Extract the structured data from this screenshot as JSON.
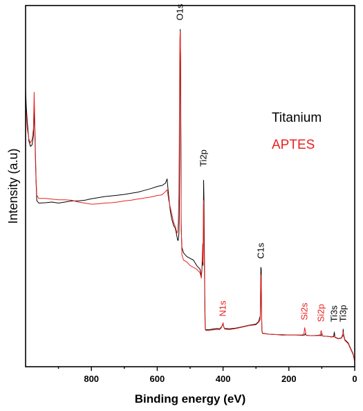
{
  "chart_data": {
    "type": "line",
    "title": "",
    "xlabel": "Binding energy (eV)",
    "ylabel": "Intensity (a.u)",
    "xlim": [
      1000,
      0
    ],
    "ylim": [
      0,
      100
    ],
    "x_reversed": true,
    "xticks": [
      800,
      600,
      400,
      200,
      0
    ],
    "grid": false,
    "legend_position": "top-right",
    "legend": [
      {
        "name": "Titanium",
        "color": "#000000"
      },
      {
        "name": "APTES",
        "color": "#e8211f"
      }
    ],
    "series": [
      {
        "name": "Titanium",
        "color": "#000000",
        "points": [
          [
            1000,
            77.0
          ],
          [
            998,
            72.0
          ],
          [
            995,
            68.0
          ],
          [
            990,
            62.5
          ],
          [
            985,
            61.0
          ],
          [
            980,
            61.5
          ],
          [
            976,
            64.0
          ],
          [
            974,
            72.0
          ],
          [
            972,
            66.0
          ],
          [
            970,
            57.0
          ],
          [
            968,
            51.0
          ],
          [
            966,
            46.0
          ],
          [
            960,
            45.3
          ],
          [
            940,
            45.4
          ],
          [
            920,
            45.6
          ],
          [
            900,
            45.3
          ],
          [
            880,
            45.6
          ],
          [
            860,
            45.9
          ],
          [
            840,
            45.9
          ],
          [
            820,
            46.1
          ],
          [
            800,
            46.5
          ],
          [
            780,
            46.8
          ],
          [
            760,
            47.1
          ],
          [
            740,
            47.3
          ],
          [
            720,
            47.5
          ],
          [
            700,
            47.7
          ],
          [
            680,
            48.0
          ],
          [
            660,
            48.3
          ],
          [
            640,
            48.8
          ],
          [
            620,
            49.3
          ],
          [
            600,
            49.9
          ],
          [
            585,
            50.2
          ],
          [
            575,
            50.8
          ],
          [
            570,
            52.0
          ],
          [
            568,
            50.0
          ],
          [
            565,
            47.0
          ],
          [
            560,
            43.0
          ],
          [
            556,
            41.0
          ],
          [
            553,
            40.0
          ],
          [
            550,
            39.0
          ],
          [
            546,
            38.5
          ],
          [
            543,
            37.5
          ],
          [
            540,
            36.0
          ],
          [
            538,
            35.0
          ],
          [
            536,
            35.0
          ],
          [
            534,
            37.0
          ],
          [
            533,
            42.0
          ],
          [
            532,
            60.0
          ],
          [
            531,
            86.0
          ],
          [
            530,
            93.4
          ],
          [
            529,
            84.0
          ],
          [
            528,
            58.0
          ],
          [
            527,
            38.0
          ],
          [
            525,
            33.0
          ],
          [
            520,
            31.5
          ],
          [
            510,
            30.5
          ],
          [
            500,
            30.0
          ],
          [
            490,
            29.5
          ],
          [
            480,
            28.0
          ],
          [
            470,
            27.0
          ],
          [
            466,
            25.0
          ],
          [
            464,
            27.0
          ],
          [
            462,
            32.0
          ],
          [
            461,
            28.0
          ],
          [
            460,
            34.0
          ],
          [
            459,
            51.6
          ],
          [
            458,
            46.0
          ],
          [
            456,
            26.0
          ],
          [
            455,
            16.0
          ],
          [
            454,
            10.5
          ],
          [
            452,
            10.2
          ],
          [
            440,
            10.3
          ],
          [
            420,
            10.6
          ],
          [
            410,
            10.5
          ],
          [
            405,
            11.0
          ],
          [
            400,
            11.8
          ],
          [
            398,
            11.0
          ],
          [
            395,
            10.6
          ],
          [
            380,
            10.5
          ],
          [
            360,
            10.7
          ],
          [
            340,
            11.1
          ],
          [
            320,
            11.5
          ],
          [
            300,
            11.8
          ],
          [
            292,
            12.5
          ],
          [
            287,
            14.0
          ],
          [
            286,
            22.0
          ],
          [
            285,
            27.5
          ],
          [
            284,
            27.0
          ],
          [
            283,
            16.0
          ],
          [
            282,
            10.0
          ],
          [
            280,
            9.3
          ],
          [
            260,
            9.0
          ],
          [
            240,
            8.9
          ],
          [
            220,
            8.8
          ],
          [
            200,
            8.8
          ],
          [
            180,
            8.8
          ],
          [
            160,
            8.7
          ],
          [
            152,
            8.8
          ],
          [
            150,
            9.2
          ],
          [
            148,
            8.7
          ],
          [
            130,
            8.6
          ],
          [
            110,
            8.7
          ],
          [
            102,
            8.6
          ],
          [
            100,
            9.2
          ],
          [
            98,
            8.5
          ],
          [
            80,
            8.4
          ],
          [
            70,
            8.3
          ],
          [
            64,
            8.3
          ],
          [
            62,
            9.6
          ],
          [
            60,
            8.2
          ],
          [
            50,
            7.8
          ],
          [
            40,
            8.0
          ],
          [
            36,
            9.0
          ],
          [
            35,
            10.4
          ],
          [
            34,
            9.0
          ],
          [
            30,
            7.5
          ],
          [
            20,
            6.6
          ],
          [
            10,
            4.6
          ],
          [
            5,
            3.6
          ],
          [
            0,
            1.5
          ]
        ]
      },
      {
        "name": "APTES",
        "color": "#e8211f",
        "points": [
          [
            1000,
            72.0
          ],
          [
            998,
            70.0
          ],
          [
            995,
            66.0
          ],
          [
            990,
            63.0
          ],
          [
            985,
            62.0
          ],
          [
            980,
            63.0
          ],
          [
            976,
            66.0
          ],
          [
            974,
            76.0
          ],
          [
            972,
            68.0
          ],
          [
            970,
            59.0
          ],
          [
            968,
            52.0
          ],
          [
            966,
            47.5
          ],
          [
            960,
            46.6
          ],
          [
            940,
            46.6
          ],
          [
            920,
            46.4
          ],
          [
            900,
            46.2
          ],
          [
            880,
            46.2
          ],
          [
            860,
            46.1
          ],
          [
            840,
            45.6
          ],
          [
            820,
            45.3
          ],
          [
            800,
            45.0
          ],
          [
            780,
            45.1
          ],
          [
            760,
            45.3
          ],
          [
            740,
            45.4
          ],
          [
            720,
            45.6
          ],
          [
            700,
            45.9
          ],
          [
            680,
            46.1
          ],
          [
            660,
            46.4
          ],
          [
            640,
            46.7
          ],
          [
            620,
            47.0
          ],
          [
            600,
            47.4
          ],
          [
            585,
            47.6
          ],
          [
            575,
            48.5
          ],
          [
            570,
            49.0
          ],
          [
            568,
            48.0
          ],
          [
            565,
            46.0
          ],
          [
            560,
            44.0
          ],
          [
            556,
            42.5
          ],
          [
            553,
            41.0
          ],
          [
            550,
            40.0
          ],
          [
            546,
            39.0
          ],
          [
            543,
            38.0
          ],
          [
            540,
            37.0
          ],
          [
            538,
            37.5
          ],
          [
            536,
            40.0
          ],
          [
            534,
            48.0
          ],
          [
            533,
            62.0
          ],
          [
            532,
            80.0
          ],
          [
            531,
            91.0
          ],
          [
            530,
            92.8
          ],
          [
            529,
            86.0
          ],
          [
            528,
            62.0
          ],
          [
            527,
            40.0
          ],
          [
            525,
            31.0
          ],
          [
            520,
            29.5
          ],
          [
            510,
            29.0
          ],
          [
            500,
            28.0
          ],
          [
            490,
            27.5
          ],
          [
            480,
            27.0
          ],
          [
            470,
            26.0
          ],
          [
            466,
            24.5
          ],
          [
            464,
            28.0
          ],
          [
            462,
            34.0
          ],
          [
            461,
            29.0
          ],
          [
            460,
            40.0
          ],
          [
            459,
            46.0
          ],
          [
            458,
            38.0
          ],
          [
            456,
            22.0
          ],
          [
            455,
            13.0
          ],
          [
            454,
            10.3
          ],
          [
            452,
            10.0
          ],
          [
            440,
            10.1
          ],
          [
            420,
            10.3
          ],
          [
            410,
            10.3
          ],
          [
            405,
            10.8
          ],
          [
            402,
            11.5
          ],
          [
            400,
            12.2
          ],
          [
            398,
            11.0
          ],
          [
            395,
            10.4
          ],
          [
            380,
            10.3
          ],
          [
            360,
            10.6
          ],
          [
            340,
            11.0
          ],
          [
            320,
            11.4
          ],
          [
            300,
            11.6
          ],
          [
            292,
            12.3
          ],
          [
            287,
            13.0
          ],
          [
            286,
            20.0
          ],
          [
            285,
            25.5
          ],
          [
            284,
            25.0
          ],
          [
            283,
            15.0
          ],
          [
            282,
            9.8
          ],
          [
            280,
            9.2
          ],
          [
            260,
            9.0
          ],
          [
            240,
            8.9
          ],
          [
            220,
            8.9
          ],
          [
            200,
            8.8
          ],
          [
            180,
            8.8
          ],
          [
            160,
            8.8
          ],
          [
            154,
            9.2
          ],
          [
            152,
            10.8
          ],
          [
            150,
            10.0
          ],
          [
            148,
            8.7
          ],
          [
            130,
            8.6
          ],
          [
            110,
            8.6
          ],
          [
            104,
            9.0
          ],
          [
            102,
            10.0
          ],
          [
            100,
            9.4
          ],
          [
            98,
            8.5
          ],
          [
            80,
            8.4
          ],
          [
            70,
            8.2
          ],
          [
            62,
            8.6
          ],
          [
            60,
            8.1
          ],
          [
            50,
            7.7
          ],
          [
            40,
            7.9
          ],
          [
            36,
            8.6
          ],
          [
            35,
            9.6
          ],
          [
            34,
            8.6
          ],
          [
            30,
            7.3
          ],
          [
            20,
            6.4
          ],
          [
            10,
            4.4
          ],
          [
            5,
            3.4
          ],
          [
            0,
            1.4
          ]
        ]
      }
    ],
    "annotations": [
      {
        "text": "O1s",
        "x": 530,
        "y": 95.5,
        "color": "#000000",
        "rotation": -90
      },
      {
        "text": "Ti2p",
        "x": 459,
        "y": 55.0,
        "color": "#000000",
        "rotation": -90
      },
      {
        "text": "C1s",
        "x": 285,
        "y": 29.5,
        "color": "#000000",
        "rotation": -90
      },
      {
        "text": "N1s",
        "x": 400,
        "y": 13.5,
        "color": "#e8211f",
        "rotation": -90
      },
      {
        "text": "Si2s",
        "x": 152,
        "y": 12.5,
        "color": "#e8211f",
        "rotation": -90
      },
      {
        "text": "Si2p",
        "x": 102,
        "y": 12.0,
        "color": "#e8211f",
        "rotation": -90
      },
      {
        "text": "Ti3s",
        "x": 62,
        "y": 12.0,
        "color": "#000000",
        "rotation": -90
      },
      {
        "text": "Ti3p",
        "x": 35,
        "y": 12.0,
        "color": "#000000",
        "rotation": -90
      }
    ]
  }
}
